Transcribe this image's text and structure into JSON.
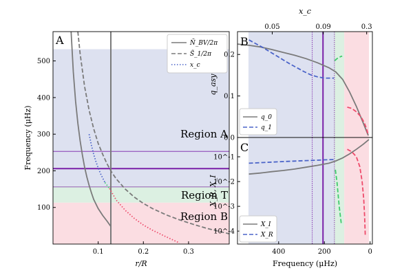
{
  "colors": {
    "regionA": "#dde1f0",
    "regionT": "#dcf0e2",
    "regionB": "#fbdde2",
    "gray": "#7a7a7a",
    "blue": "#4a63c8",
    "green": "#3ecb6b",
    "pink": "#ee4a6a",
    "purple": "#7a1fa8",
    "regionA_text": "#6470c0",
    "regionT_text": "#3fbf6a",
    "regionB_text": "#e8506c"
  },
  "chart_data": [
    {
      "id": "A",
      "type": "line",
      "panel_label": "A",
      "xlabel": "r/R",
      "ylabel": "Frequency (μHz)",
      "xlim": [
        0,
        0.39
      ],
      "ylim": [
        0,
        580
      ],
      "xticks": [
        {
          "v": 0.1,
          "label": "0.1"
        },
        {
          "v": 0.2,
          "label": "0.2"
        },
        {
          "v": 0.3,
          "label": "0.3"
        }
      ],
      "yticks": [
        {
          "v": 100,
          "label": "100"
        },
        {
          "v": 200,
          "label": "200"
        },
        {
          "v": 300,
          "label": "300"
        },
        {
          "v": 400,
          "label": "400"
        },
        {
          "v": 500,
          "label": "500"
        }
      ],
      "regions": [
        {
          "name": "Region A",
          "label": "Region A",
          "ymin": 158,
          "ymax": 532,
          "color": "regionA"
        },
        {
          "name": "Region T",
          "label": "Region T",
          "ymin": 113,
          "ymax": 158,
          "color": "regionT"
        },
        {
          "name": "Region B",
          "label": "Region B",
          "ymin": 0,
          "ymax": 113,
          "color": "regionB"
        }
      ],
      "hlines": [
        {
          "y": 206,
          "style": "solid",
          "color": "purple"
        },
        {
          "y": 253,
          "style": "thin",
          "color": "purple"
        },
        {
          "y": 156,
          "style": "thin",
          "color": "purple"
        }
      ],
      "vlines": [
        {
          "x": 0.128,
          "style": "solid",
          "color": "gray"
        }
      ],
      "legend": [
        {
          "label": "Ñ_BV/2π",
          "style": "solid",
          "color": "gray"
        },
        {
          "label": "S̃_1/2π",
          "style": "dashed",
          "color": "gray"
        },
        {
          "label": "x_c",
          "style": "dotted",
          "color": "blue"
        }
      ],
      "series": [
        {
          "name": "Ñ_BV/2π",
          "style": "solid",
          "color": "gray",
          "x": [
            0.04,
            0.045,
            0.05,
            0.055,
            0.06,
            0.065,
            0.07,
            0.075,
            0.08,
            0.085,
            0.09,
            0.1,
            0.11,
            0.12,
            0.128
          ],
          "y": [
            580,
            470,
            390,
            330,
            282,
            243,
            210,
            183,
            160,
            140,
            122,
            97,
            78,
            62,
            48
          ]
        },
        {
          "name": "S̃_1/2π",
          "style": "dashed",
          "color": "gray",
          "x": [
            0.055,
            0.06,
            0.07,
            0.08,
            0.09,
            0.1,
            0.11,
            0.12,
            0.13,
            0.14,
            0.16,
            0.18,
            0.2,
            0.22,
            0.25,
            0.28,
            0.31,
            0.34,
            0.39
          ],
          "y": [
            580,
            520,
            430,
            365,
            315,
            275,
            245,
            218,
            196,
            178,
            150,
            128,
            111,
            97,
            80,
            66,
            54,
            43,
            28
          ]
        },
        {
          "name": "x_c",
          "style": "dotted",
          "color": "blue",
          "x": [
            0.08,
            0.085,
            0.09,
            0.095,
            0.1,
            0.105,
            0.11,
            0.115
          ],
          "y": [
            300,
            270,
            245,
            225,
            208,
            193,
            180,
            168
          ]
        },
        {
          "name": "x_c",
          "style": "dotted",
          "color": "green",
          "x": [
            0.115,
            0.12,
            0.125
          ],
          "y": [
            168,
            160,
            152
          ]
        },
        {
          "name": "x_c",
          "style": "dotted",
          "color": "pink",
          "x": [
            0.125,
            0.14,
            0.16,
            0.18,
            0.2,
            0.22,
            0.25,
            0.28
          ],
          "y": [
            152,
            120,
            92,
            70,
            52,
            38,
            20,
            3
          ]
        }
      ]
    },
    {
      "id": "B",
      "type": "line",
      "panel_label": "B",
      "xlabel": "",
      "ylabel": "q_asy",
      "top_xlabel": "x_c",
      "top_ticks": [
        {
          "f": 428,
          "label": "0.05"
        },
        {
          "f": 205,
          "label": "0.09"
        },
        {
          "f": 15,
          "label": "0.3"
        }
      ],
      "xlim": [
        580,
        -10
      ],
      "ylim": [
        0,
        0.255
      ],
      "yticks": [
        {
          "v": 0.0,
          "label": "0.0"
        },
        {
          "v": 0.1,
          "label": "0.1"
        },
        {
          "v": 0.2,
          "label": "0.2"
        }
      ],
      "legend": [
        {
          "label": "q_0",
          "style": "solid",
          "color": "gray"
        },
        {
          "label": "q_1",
          "style": "dashed",
          "color": "blue"
        }
      ],
      "series": [
        {
          "name": "q_0",
          "style": "solid",
          "color": "gray",
          "x": [
            580,
            530,
            480,
            430,
            380,
            330,
            280,
            230,
            180,
            150,
            120,
            90,
            60,
            30,
            8
          ],
          "y": [
            0.225,
            0.222,
            0.218,
            0.212,
            0.205,
            0.198,
            0.19,
            0.18,
            0.168,
            0.158,
            0.14,
            0.11,
            0.075,
            0.035,
            0.005
          ]
        },
        {
          "name": "q_1",
          "style": "dashed",
          "color": "blue",
          "x": [
            530,
            500,
            470,
            440,
            410,
            380,
            350,
            320,
            290,
            260,
            230,
            200,
            175,
            158
          ],
          "y": [
            0.235,
            0.226,
            0.217,
            0.207,
            0.197,
            0.187,
            0.177,
            0.168,
            0.159,
            0.151,
            0.146,
            0.143,
            0.143,
            0.143
          ]
        },
        {
          "name": "q_1",
          "style": "dashed",
          "color": "green",
          "x": [
            155,
            145,
            135,
            128,
            122
          ],
          "y": [
            0.185,
            0.19,
            0.193,
            0.195,
            0.196
          ]
        },
        {
          "name": "q_1",
          "style": "dashed",
          "color": "pink",
          "x": [
            100,
            80,
            60,
            40,
            25,
            15,
            8
          ],
          "y": [
            0.073,
            0.07,
            0.062,
            0.05,
            0.035,
            0.02,
            0.005
          ]
        }
      ]
    },
    {
      "id": "C",
      "type": "line",
      "panel_label": "C",
      "xlabel": "Frequency (μHz)",
      "ylabel": "X_R, X_I",
      "scale_y": "log",
      "xlim": [
        580,
        -10
      ],
      "ylim": [
        3e-05,
        0.6
      ],
      "xticks": [
        {
          "v": 400,
          "label": "400"
        },
        {
          "v": 200,
          "label": "200"
        },
        {
          "v": 0,
          "label": "0"
        }
      ],
      "yticks": [
        {
          "v": 0.1,
          "label": "10^-1"
        },
        {
          "v": 0.01,
          "label": "10^-2"
        },
        {
          "v": 0.001,
          "label": "10^-3"
        },
        {
          "v": 0.0001,
          "label": "10^-4"
        }
      ],
      "legend": [
        {
          "label": "X_I",
          "style": "solid",
          "color": "gray"
        },
        {
          "label": "X_R",
          "style": "dashed",
          "color": "blue"
        }
      ],
      "series": [
        {
          "name": "X_I",
          "style": "solid",
          "color": "gray",
          "x": [
            530,
            480,
            430,
            380,
            330,
            280,
            230,
            180,
            150,
            120,
            90,
            60,
            30,
            5
          ],
          "y": [
            0.02,
            0.022,
            0.025,
            0.028,
            0.032,
            0.038,
            0.045,
            0.055,
            0.068,
            0.09,
            0.13,
            0.2,
            0.32,
            0.5
          ]
        },
        {
          "name": "X_R",
          "style": "dashed",
          "color": "blue",
          "x": [
            530,
            480,
            430,
            380,
            330,
            280,
            230,
            200,
            180,
            158
          ],
          "y": [
            0.055,
            0.058,
            0.061,
            0.064,
            0.067,
            0.07,
            0.073,
            0.075,
            0.076,
            0.077
          ]
        },
        {
          "name": "X_R",
          "style": "dashed",
          "color": "green",
          "x": [
            152,
            145,
            140,
            135,
            130,
            126
          ],
          "y": [
            0.03,
            0.01,
            0.003,
            0.001,
            0.0004,
            0.0002
          ]
        },
        {
          "name": "X_R",
          "style": "dashed",
          "color": "pink",
          "x": [
            100,
            80,
            60,
            45,
            35,
            28,
            24,
            21
          ],
          "y": [
            0.2,
            0.16,
            0.1,
            0.04,
            0.01,
            0.002,
            0.0004,
            6e-05
          ]
        }
      ]
    }
  ],
  "shared_right": {
    "regions": [
      {
        "name": "Region A",
        "fmin": 158,
        "fmax": 532,
        "color": "regionA"
      },
      {
        "name": "Region T",
        "fmin": 113,
        "fmax": 158,
        "color": "regionT"
      },
      {
        "name": "Region B",
        "fmin": 5,
        "fmax": 113,
        "color": "regionB"
      }
    ],
    "vlines": [
      {
        "f": 253,
        "style": "dotted",
        "color": "purple"
      },
      {
        "f": 156,
        "style": "dotted",
        "color": "purple"
      },
      {
        "f": 206,
        "style": "solid",
        "color": "purple"
      }
    ]
  }
}
